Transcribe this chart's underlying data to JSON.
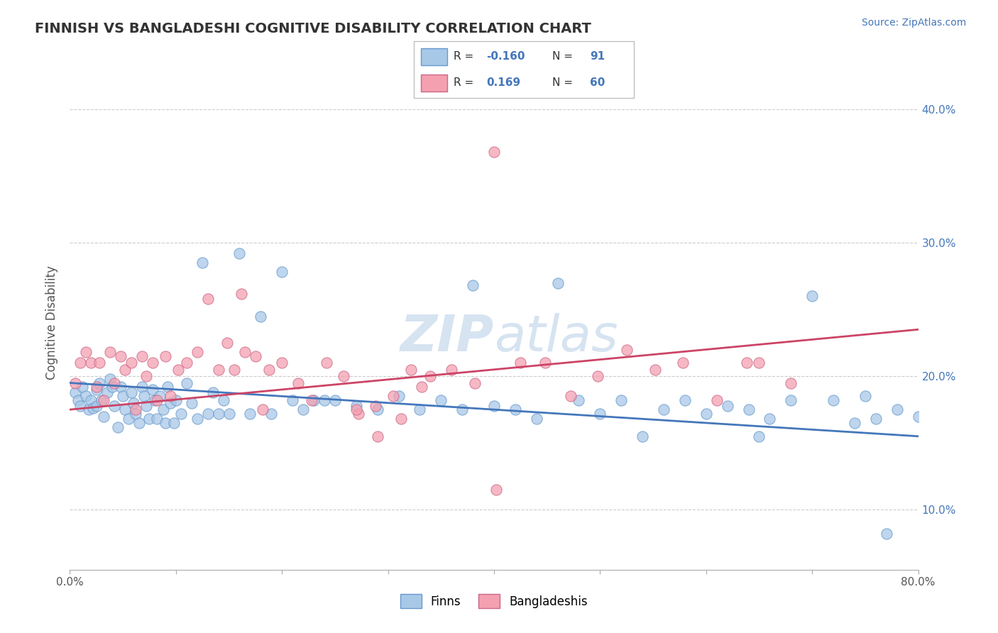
{
  "title": "FINNISH VS BANGLADESHI COGNITIVE DISABILITY CORRELATION CHART",
  "source": "Source: ZipAtlas.com",
  "ylabel": "Cognitive Disability",
  "xlim": [
    0.0,
    0.8
  ],
  "ylim": [
    0.055,
    0.425
  ],
  "color_finn": "#A8C8E8",
  "color_finn_edge": "#6699CC",
  "color_bang": "#F4A0B0",
  "color_bang_edge": "#CC6688",
  "color_line_finn": "#4477BB",
  "color_line_bang": "#CC4466",
  "watermark_color": "#C5D8EC",
  "finn_x": [
    0.005,
    0.008,
    0.01,
    0.012,
    0.015,
    0.018,
    0.02,
    0.022,
    0.025,
    0.025,
    0.028,
    0.03,
    0.032,
    0.035,
    0.038,
    0.04,
    0.042,
    0.045,
    0.048,
    0.05,
    0.052,
    0.055,
    0.058,
    0.06,
    0.062,
    0.065,
    0.068,
    0.07,
    0.072,
    0.075,
    0.078,
    0.08,
    0.082,
    0.085,
    0.088,
    0.09,
    0.092,
    0.095,
    0.098,
    0.1,
    0.105,
    0.11,
    0.115,
    0.12,
    0.125,
    0.13,
    0.135,
    0.14,
    0.145,
    0.15,
    0.16,
    0.17,
    0.18,
    0.19,
    0.2,
    0.21,
    0.22,
    0.23,
    0.24,
    0.25,
    0.27,
    0.29,
    0.31,
    0.33,
    0.35,
    0.37,
    0.38,
    0.4,
    0.42,
    0.44,
    0.46,
    0.48,
    0.5,
    0.52,
    0.54,
    0.56,
    0.58,
    0.6,
    0.62,
    0.64,
    0.66,
    0.68,
    0.7,
    0.72,
    0.74,
    0.76,
    0.78,
    0.8,
    0.65,
    0.75,
    0.77
  ],
  "finn_y": [
    0.188,
    0.182,
    0.178,
    0.192,
    0.185,
    0.175,
    0.182,
    0.176,
    0.19,
    0.178,
    0.195,
    0.182,
    0.17,
    0.188,
    0.198,
    0.192,
    0.178,
    0.162,
    0.192,
    0.185,
    0.175,
    0.168,
    0.188,
    0.18,
    0.172,
    0.165,
    0.192,
    0.185,
    0.178,
    0.168,
    0.19,
    0.182,
    0.168,
    0.185,
    0.175,
    0.165,
    0.192,
    0.18,
    0.165,
    0.182,
    0.172,
    0.195,
    0.18,
    0.168,
    0.285,
    0.172,
    0.188,
    0.172,
    0.182,
    0.172,
    0.292,
    0.172,
    0.245,
    0.172,
    0.278,
    0.182,
    0.175,
    0.182,
    0.182,
    0.182,
    0.178,
    0.175,
    0.185,
    0.175,
    0.182,
    0.175,
    0.268,
    0.178,
    0.175,
    0.168,
    0.27,
    0.182,
    0.172,
    0.182,
    0.155,
    0.175,
    0.182,
    0.172,
    0.178,
    0.175,
    0.168,
    0.182,
    0.26,
    0.182,
    0.165,
    0.168,
    0.175,
    0.17,
    0.155,
    0.185,
    0.082
  ],
  "bang_x": [
    0.005,
    0.01,
    0.015,
    0.02,
    0.025,
    0.028,
    0.032,
    0.038,
    0.042,
    0.048,
    0.052,
    0.058,
    0.062,
    0.068,
    0.072,
    0.078,
    0.082,
    0.09,
    0.095,
    0.102,
    0.11,
    0.12,
    0.13,
    0.14,
    0.155,
    0.165,
    0.175,
    0.188,
    0.2,
    0.215,
    0.228,
    0.242,
    0.258,
    0.272,
    0.288,
    0.305,
    0.322,
    0.34,
    0.36,
    0.382,
    0.402,
    0.425,
    0.448,
    0.472,
    0.498,
    0.525,
    0.552,
    0.578,
    0.61,
    0.638,
    0.148,
    0.162,
    0.182,
    0.27,
    0.29,
    0.312,
    0.332,
    0.4,
    0.65,
    0.68
  ],
  "bang_y": [
    0.195,
    0.21,
    0.218,
    0.21,
    0.192,
    0.21,
    0.182,
    0.218,
    0.195,
    0.215,
    0.205,
    0.21,
    0.175,
    0.215,
    0.2,
    0.21,
    0.182,
    0.215,
    0.185,
    0.205,
    0.21,
    0.218,
    0.258,
    0.205,
    0.205,
    0.218,
    0.215,
    0.205,
    0.21,
    0.195,
    0.182,
    0.21,
    0.2,
    0.172,
    0.178,
    0.185,
    0.205,
    0.2,
    0.205,
    0.195,
    0.115,
    0.21,
    0.21,
    0.185,
    0.2,
    0.22,
    0.205,
    0.21,
    0.182,
    0.21,
    0.225,
    0.262,
    0.175,
    0.175,
    0.155,
    0.168,
    0.192,
    0.368,
    0.21,
    0.195
  ]
}
